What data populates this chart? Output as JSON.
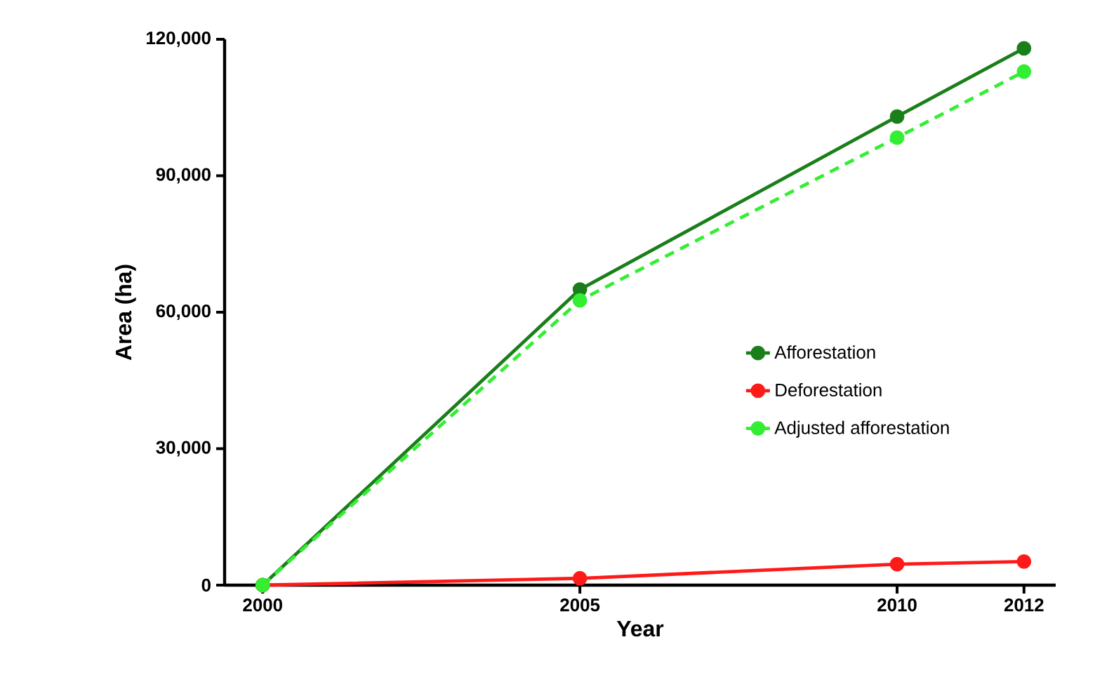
{
  "chart_data": {
    "type": "line",
    "xlabel": "Year",
    "ylabel": "Area (ha)",
    "x": [
      2000,
      2005,
      2010,
      2012
    ],
    "series": [
      {
        "name": "Afforestation",
        "color": "#1a7f1a",
        "values": [
          0,
          65000,
          103000,
          118000
        ]
      },
      {
        "name": "Deforestation",
        "color": "#ff1a1a",
        "values": [
          0,
          1500,
          4600,
          5200
        ]
      },
      {
        "name": "Adjusted afforestation",
        "color": "#33ee33",
        "values": [
          0,
          62600,
          98400,
          112900
        ],
        "line_style": "dashed"
      }
    ],
    "xlim": [
      1999.4,
      2012.5
    ],
    "xticks": [
      2000,
      2005,
      2010,
      2012
    ],
    "ylim": [
      0,
      120000
    ],
    "yticks": [
      {
        "value": 0,
        "label": "0"
      },
      {
        "value": 30000,
        "label": "30,000"
      },
      {
        "value": 60000,
        "label": "60,000"
      },
      {
        "value": 90000,
        "label": "90,000"
      },
      {
        "value": 120000,
        "label": "120,000"
      }
    ],
    "grid": false,
    "legend": "right",
    "marker": "circle",
    "line_style": "solid"
  }
}
